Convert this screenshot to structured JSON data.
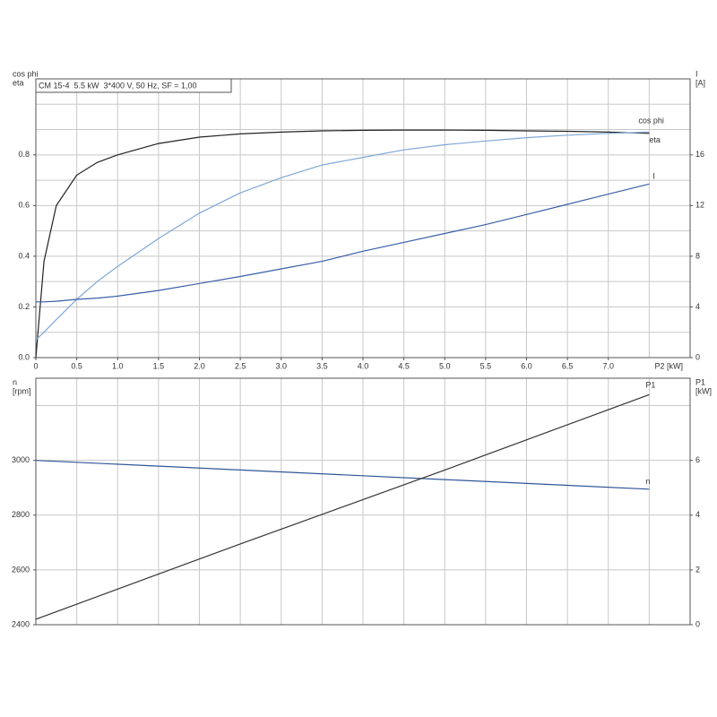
{
  "chart_data": [
    {
      "type": "line",
      "title": "CM 15-4  5.5 kW  3*400 V, 50 Hz, SF = 1,00",
      "ylabel": [
        "cos phi",
        "eta"
      ],
      "y2label": [
        "I",
        "[A]"
      ],
      "xlabel": "P2 [kW]",
      "x": [
        0,
        0.1,
        0.25,
        0.5,
        0.75,
        1,
        1.5,
        2,
        2.5,
        3,
        3.5,
        4,
        4.5,
        5,
        5.5,
        6,
        6.5,
        7,
        7.5
      ],
      "series": [
        {
          "name": "eta",
          "color": "#222222",
          "values": [
            0,
            0.38,
            0.6,
            0.72,
            0.77,
            0.8,
            0.845,
            0.87,
            0.883,
            0.89,
            0.895,
            0.897,
            0.898,
            0.898,
            0.897,
            0.895,
            0.893,
            0.89,
            0.885
          ]
        },
        {
          "name": "cos phi",
          "color": "#7fa7d6",
          "values": [
            0.07,
            0.1,
            0.15,
            0.23,
            0.3,
            0.36,
            0.47,
            0.57,
            0.65,
            0.71,
            0.76,
            0.79,
            0.82,
            0.84,
            0.855,
            0.868,
            0.878,
            0.885,
            0.89
          ]
        },
        {
          "name": "I",
          "color": "#3a5fa8",
          "axis": "y2",
          "values": [
            4.4,
            4.4,
            4.45,
            4.6,
            4.7,
            4.85,
            5.3,
            5.85,
            6.4,
            7.0,
            7.6,
            8.4,
            9.1,
            9.8,
            10.5,
            11.3,
            12.1,
            12.9,
            13.7
          ]
        }
      ],
      "xlim": [
        0,
        8
      ],
      "xticks": [
        0,
        0.5,
        {
          "value": 1,
          "label": "1.0"
        },
        1.5,
        {
          "value": 2,
          "label": "2.0"
        },
        2.5,
        {
          "value": 3,
          "label": "3.0"
        },
        3.5,
        {
          "value": 4,
          "label": "4.0"
        },
        4.5,
        {
          "value": 5,
          "label": "5.0"
        },
        5.5,
        {
          "value": 6,
          "label": "6.0"
        },
        6.5,
        {
          "value": 7,
          "label": "7.0"
        }
      ],
      "xgrid": [
        0.5,
        1,
        1.5,
        2,
        2.5,
        3,
        3.5,
        4,
        4.5,
        5,
        5.5,
        6,
        6.5,
        7,
        7.5
      ],
      "ylim": [
        0,
        1.1
      ],
      "yticks": [
        {
          "value": 0,
          "label": "0.0"
        },
        0.2,
        0.4,
        0.6,
        0.8
      ],
      "ygrid": [
        0.1,
        0.2,
        0.3,
        0.4,
        0.5,
        0.6,
        0.7,
        0.8,
        0.9,
        1.0
      ],
      "y2lim": [
        0,
        22
      ],
      "y2ticks": [
        0,
        4,
        8,
        12,
        16
      ],
      "grid": true
    },
    {
      "type": "line",
      "ylabel": [
        "n",
        "[rpm]"
      ],
      "y2label": [
        "P1",
        "[kW]"
      ],
      "x": [
        0,
        2.5,
        5,
        7.5
      ],
      "series": [
        {
          "name": "n",
          "color": "#2f5597",
          "values": [
            3000,
            2965,
            2930,
            2895
          ]
        },
        {
          "name": "P1",
          "color": "#333333",
          "axis": "y2",
          "values": [
            0.2,
            2.95,
            5.65,
            8.4
          ]
        }
      ],
      "xlim": [
        0,
        8
      ],
      "xgrid": [
        0.5,
        1,
        1.5,
        2,
        2.5,
        3,
        3.5,
        4,
        4.5,
        5,
        5.5,
        6,
        6.5,
        7,
        7.5
      ],
      "ylim": [
        2400,
        3300
      ],
      "yticks": [
        2400,
        2600,
        2800,
        3000
      ],
      "ygrid": [
        2600,
        2800,
        3000,
        3200
      ],
      "y2lim": [
        0,
        9
      ],
      "y2ticks": [
        0,
        2,
        4,
        6
      ],
      "grid": true
    }
  ]
}
